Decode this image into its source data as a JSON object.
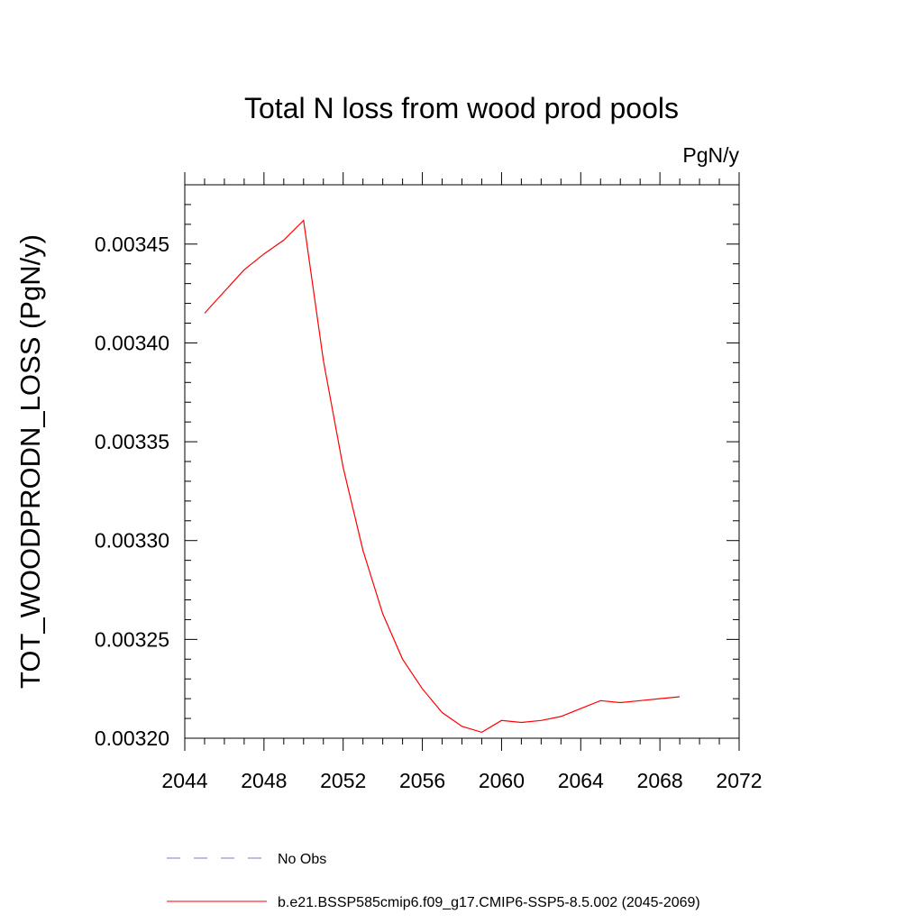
{
  "chart_data": {
    "type": "line",
    "title": "Total N loss from wood prod pools",
    "units_label": "PgN/y",
    "ylabel": "TOT_WOODPRODN_LOSS  (PgN/y)",
    "xlabel": "",
    "xlim": [
      2044,
      2072
    ],
    "ylim": [
      0.0032,
      0.00348
    ],
    "x_ticks": [
      2044,
      2048,
      2052,
      2056,
      2060,
      2064,
      2068,
      2072
    ],
    "x_tick_labels": [
      "2044",
      "2048",
      "2052",
      "2056",
      "2060",
      "2064",
      "2068",
      "2072"
    ],
    "y_ticks": [
      0.0032,
      0.00325,
      0.0033,
      0.00335,
      0.0034,
      0.00345
    ],
    "y_tick_labels": [
      "0.00320",
      "0.00325",
      "0.00330",
      "0.00335",
      "0.00340",
      "0.00345"
    ],
    "grid": false,
    "legend_position": "bottom",
    "series": [
      {
        "name": "b.e21.BSSP585cmip6.f09_g17.CMIP6-SSP5-8.5.002 (2045-2069)",
        "color": "#ff0000",
        "dash": "solid",
        "x": [
          2045,
          2046,
          2047,
          2048,
          2049,
          2050,
          2051,
          2052,
          2053,
          2054,
          2055,
          2056,
          2057,
          2058,
          2059,
          2060,
          2061,
          2062,
          2063,
          2064,
          2065,
          2066,
          2067,
          2068,
          2069
        ],
        "y": [
          0.003415,
          0.003426,
          0.003437,
          0.003445,
          0.003452,
          0.003462,
          0.003391,
          0.003337,
          0.003295,
          0.003263,
          0.00324,
          0.003225,
          0.003213,
          0.003206,
          0.003203,
          0.003209,
          0.003208,
          0.003209,
          0.003211,
          0.003215,
          0.003219,
          0.003218,
          0.003219,
          0.00322,
          0.003221
        ]
      }
    ],
    "legend": [
      {
        "label": "No Obs",
        "color": "#7b7bc4",
        "dash": "dashed"
      },
      {
        "label": "b.e21.BSSP585cmip6.f09_g17.CMIP6-SSP5-8.5.002 (2045-2069)",
        "color": "#ff0000",
        "dash": "solid"
      }
    ]
  }
}
